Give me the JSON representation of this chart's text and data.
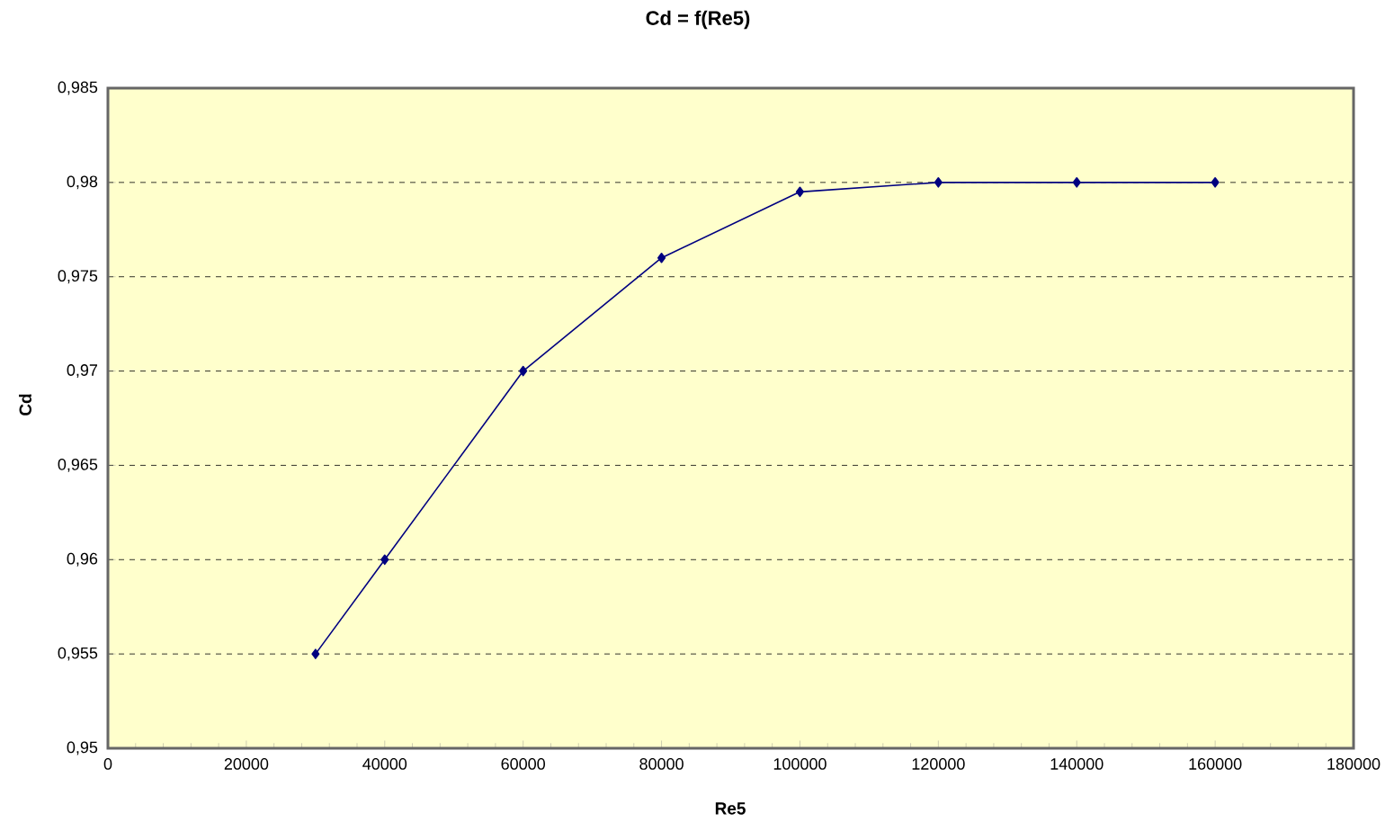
{
  "chart_data": {
    "type": "line",
    "title": "Cd = f(Re5)",
    "xlabel": "Re5",
    "ylabel": "Cd",
    "x": [
      30000,
      40000,
      60000,
      80000,
      100000,
      120000,
      140000,
      160000
    ],
    "series": [
      {
        "color": "#000080",
        "values": [
          0.955,
          0.96,
          0.97,
          0.976,
          0.9795,
          0.98,
          0.98,
          0.98
        ]
      }
    ],
    "xlim": [
      0,
      180000
    ],
    "xticks": [
      0,
      20000,
      40000,
      60000,
      80000,
      100000,
      120000,
      140000,
      160000,
      180000
    ],
    "ylim": [
      0.95,
      0.985
    ],
    "yticks": [
      {
        "value": 0.95,
        "label": "0,95"
      },
      {
        "value": 0.955,
        "label": "0,955"
      },
      {
        "value": 0.96,
        "label": "0,96"
      },
      {
        "value": 0.965,
        "label": "0,965"
      },
      {
        "value": 0.97,
        "label": "0,97"
      },
      {
        "value": 0.975,
        "label": "0,975"
      },
      {
        "value": 0.98,
        "label": "0,98"
      },
      {
        "value": 0.985,
        "label": "0,985"
      }
    ],
    "grid": "y",
    "marker": "diamond",
    "line_style": "solid"
  }
}
